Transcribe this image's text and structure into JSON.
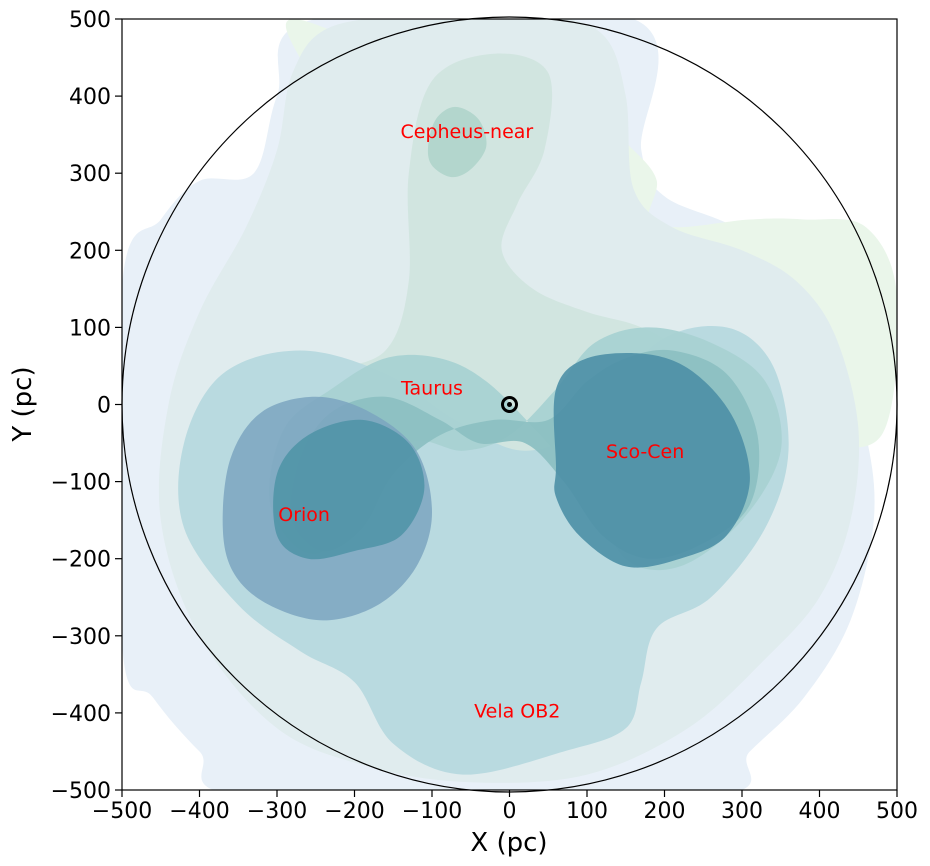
{
  "chart_data": {
    "type": "contour",
    "title": "",
    "xlabel": "X (pc)",
    "ylabel": "Y (pc)",
    "xlim": [
      -500,
      500
    ],
    "ylim": [
      -500,
      500
    ],
    "xticks": [
      -500,
      -400,
      -300,
      -200,
      -100,
      0,
      100,
      200,
      300,
      400,
      500
    ],
    "yticks": [
      -500,
      -400,
      -300,
      -200,
      -100,
      0,
      100,
      200,
      300,
      400,
      500
    ],
    "xtick_labels": [
      "−500",
      "−400",
      "−300",
      "−200",
      "−100",
      "0",
      "100",
      "200",
      "300",
      "400",
      "500"
    ],
    "ytick_labels": [
      "−500",
      "−400",
      "−300",
      "−200",
      "−100",
      "0",
      "100",
      "200",
      "300",
      "400",
      "500"
    ],
    "grid": false,
    "boundary_circle": {
      "center": [
        0,
        0
      ],
      "radius": 500,
      "color": "#000000"
    },
    "sun_marker": {
      "x": 0,
      "y": 0,
      "symbol": "⊙"
    },
    "label_color": "#ff0000",
    "regions": [
      {
        "name": "Cepheus-near",
        "x": -55,
        "y": 355
      },
      {
        "name": "Taurus",
        "x": -100,
        "y": 22
      },
      {
        "name": "Sco-Cen",
        "x": 175,
        "y": -60
      },
      {
        "name": "Orion",
        "x": -265,
        "y": -142
      },
      {
        "name": "Vela OB2",
        "x": 10,
        "y": -397
      }
    ],
    "contour_layers": [
      {
        "color": "#e8f0f8",
        "opacity": 1.0,
        "shape": [
          [
            -500,
            155
          ],
          [
            -450,
            240
          ],
          [
            -400,
            290
          ],
          [
            -330,
            300
          ],
          [
            -300,
            400
          ],
          [
            -250,
            500
          ],
          [
            160,
            500
          ],
          [
            170,
            330
          ],
          [
            200,
            270
          ],
          [
            290,
            230
          ],
          [
            360,
            170
          ],
          [
            420,
            80
          ],
          [
            460,
            -40
          ],
          [
            470,
            -150
          ],
          [
            440,
            -280
          ],
          [
            380,
            -380
          ],
          [
            310,
            -450
          ],
          [
            250,
            -510
          ],
          [
            -330,
            -510
          ],
          [
            -400,
            -450
          ],
          [
            -460,
            -380
          ],
          [
            -500,
            -310
          ]
        ]
      },
      {
        "color": "#eaf6ea",
        "opacity": 1.0,
        "shape": [
          [
            -280,
            500
          ],
          [
            -120,
            440
          ],
          [
            40,
            390
          ],
          [
            120,
            360
          ],
          [
            160,
            330
          ],
          [
            190,
            290
          ],
          [
            180,
            240
          ],
          [
            220,
            230
          ],
          [
            310,
            240
          ],
          [
            380,
            240
          ],
          [
            460,
            230
          ],
          [
            500,
            140
          ],
          [
            480,
            -40
          ],
          [
            380,
            -40
          ],
          [
            300,
            20
          ],
          [
            200,
            60
          ],
          [
            80,
            150
          ],
          [
            -60,
            250
          ],
          [
            -200,
            330
          ],
          [
            -260,
            430
          ]
        ]
      },
      {
        "color": "#e0ecee",
        "opacity": 1.0,
        "shape": [
          [
            -400,
            -300
          ],
          [
            -450,
            -150
          ],
          [
            -440,
            0
          ],
          [
            -400,
            120
          ],
          [
            -340,
            230
          ],
          [
            -300,
            330
          ],
          [
            -280,
            430
          ],
          [
            -230,
            490
          ],
          [
            -100,
            505
          ],
          [
            40,
            505
          ],
          [
            120,
            480
          ],
          [
            150,
            400
          ],
          [
            160,
            280
          ],
          [
            210,
            230
          ],
          [
            300,
            200
          ],
          [
            370,
            160
          ],
          [
            420,
            90
          ],
          [
            450,
            -30
          ],
          [
            440,
            -150
          ],
          [
            400,
            -250
          ],
          [
            330,
            -330
          ],
          [
            230,
            -420
          ],
          [
            100,
            -480
          ],
          [
            -50,
            -490
          ],
          [
            -180,
            -470
          ],
          [
            -300,
            -420
          ]
        ]
      },
      {
        "color": "#cfe4de",
        "opacity": 0.9,
        "shape": [
          [
            -230,
            -180
          ],
          [
            -300,
            -100
          ],
          [
            -300,
            0
          ],
          [
            -240,
            40
          ],
          [
            -160,
            70
          ],
          [
            -130,
            160
          ],
          [
            -130,
            300
          ],
          [
            -100,
            420
          ],
          [
            -20,
            455
          ],
          [
            50,
            430
          ],
          [
            45,
            330
          ],
          [
            10,
            260
          ],
          [
            -10,
            200
          ],
          [
            30,
            150
          ],
          [
            100,
            120
          ],
          [
            170,
            100
          ],
          [
            230,
            60
          ],
          [
            270,
            -20
          ],
          [
            280,
            -110
          ],
          [
            250,
            -200
          ],
          [
            170,
            -250
          ],
          [
            70,
            -240
          ],
          [
            0,
            -190
          ],
          [
            -80,
            -150
          ],
          [
            -150,
            -170
          ]
        ]
      },
      {
        "color": "#b9dae0",
        "opacity": 1.0,
        "shape": [
          [
            -350,
            -260
          ],
          [
            -420,
            -160
          ],
          [
            -420,
            -50
          ],
          [
            -370,
            40
          ],
          [
            -270,
            70
          ],
          [
            -160,
            40
          ],
          [
            -70,
            -20
          ],
          [
            20,
            -60
          ],
          [
            110,
            -20
          ],
          [
            190,
            80
          ],
          [
            280,
            100
          ],
          [
            340,
            50
          ],
          [
            360,
            -60
          ],
          [
            330,
            -160
          ],
          [
            260,
            -250
          ],
          [
            190,
            -290
          ],
          [
            170,
            -360
          ],
          [
            150,
            -420
          ],
          [
            70,
            -450
          ],
          [
            -60,
            -480
          ],
          [
            -150,
            -440
          ],
          [
            -200,
            -360
          ],
          [
            -270,
            -320
          ]
        ]
      },
      {
        "color": "#a8d2d2",
        "opacity": 0.95,
        "shape": [
          [
            -310,
            -120
          ],
          [
            -290,
            -30
          ],
          [
            -230,
            20
          ],
          [
            -160,
            60
          ],
          [
            -90,
            60
          ],
          [
            -30,
            30
          ],
          [
            40,
            -40
          ],
          [
            100,
            -110
          ],
          [
            150,
            -200
          ],
          [
            220,
            -210
          ],
          [
            300,
            -150
          ],
          [
            350,
            -60
          ],
          [
            330,
            30
          ],
          [
            260,
            80
          ],
          [
            180,
            100
          ],
          [
            110,
            80
          ],
          [
            60,
            20
          ],
          [
            0,
            -40
          ],
          [
            -60,
            -60
          ],
          [
            -130,
            -50
          ],
          [
            -200,
            -130
          ],
          [
            -240,
            -190
          ],
          [
            -280,
            -180
          ]
        ]
      },
      {
        "color": "#8cc0c2",
        "opacity": 0.95,
        "shape": [
          [
            -280,
            -150
          ],
          [
            -270,
            -70
          ],
          [
            -230,
            -10
          ],
          [
            -160,
            10
          ],
          [
            -90,
            -20
          ],
          [
            -40,
            -50
          ],
          [
            20,
            -50
          ],
          [
            70,
            -100
          ],
          [
            120,
            -170
          ],
          [
            180,
            -200
          ],
          [
            250,
            -180
          ],
          [
            310,
            -130
          ],
          [
            320,
            -40
          ],
          [
            280,
            40
          ],
          [
            210,
            70
          ],
          [
            150,
            60
          ],
          [
            100,
            30
          ],
          [
            50,
            -20
          ],
          [
            -20,
            -20
          ],
          [
            -90,
            -40
          ],
          [
            -150,
            -90
          ],
          [
            -190,
            -160
          ],
          [
            -240,
            -190
          ]
        ]
      },
      {
        "color": "#7ba5c0",
        "opacity": 0.85,
        "shape": [
          [
            -370,
            -160
          ],
          [
            -360,
            -70
          ],
          [
            -320,
            -10
          ],
          [
            -250,
            10
          ],
          [
            -180,
            -10
          ],
          [
            -120,
            -60
          ],
          [
            -100,
            -140
          ],
          [
            -120,
            -210
          ],
          [
            -170,
            -260
          ],
          [
            -240,
            -280
          ],
          [
            -310,
            -260
          ],
          [
            -355,
            -220
          ]
        ]
      },
      {
        "color": "#4d93a6",
        "opacity": 0.85,
        "shape": [
          [
            -300,
            -170
          ],
          [
            -300,
            -90
          ],
          [
            -260,
            -40
          ],
          [
            -190,
            -20
          ],
          [
            -130,
            -50
          ],
          [
            -110,
            -110
          ],
          [
            -140,
            -170
          ],
          [
            -200,
            -190
          ],
          [
            -260,
            -200
          ]
        ]
      },
      {
        "color": "#4c8fa6",
        "opacity": 0.9,
        "shape": [
          [
            60,
            -80
          ],
          [
            60,
            20
          ],
          [
            100,
            60
          ],
          [
            180,
            65
          ],
          [
            240,
            40
          ],
          [
            290,
            -20
          ],
          [
            310,
            -100
          ],
          [
            280,
            -170
          ],
          [
            220,
            -200
          ],
          [
            150,
            -210
          ],
          [
            90,
            -170
          ],
          [
            60,
            -120
          ]
        ]
      },
      {
        "color": "#b3d6cd",
        "opacity": 1.0,
        "shape": [
          [
            -105,
            335
          ],
          [
            -95,
            370
          ],
          [
            -70,
            386
          ],
          [
            -40,
            370
          ],
          [
            -30,
            335
          ],
          [
            -50,
            305
          ],
          [
            -75,
            295
          ],
          [
            -100,
            310
          ]
        ]
      }
    ]
  }
}
